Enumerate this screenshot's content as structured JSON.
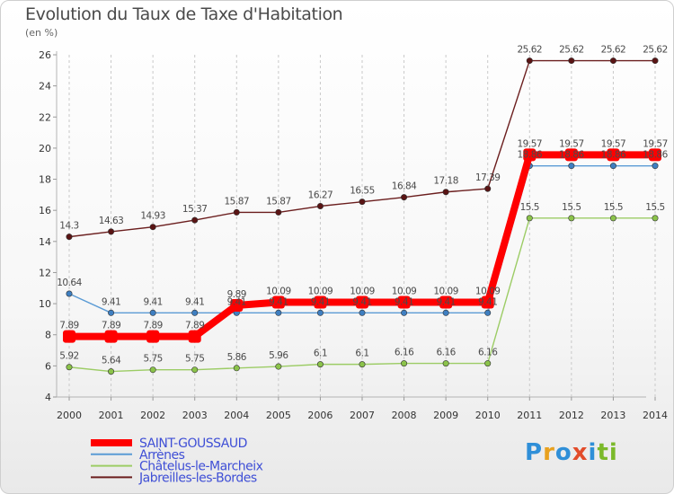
{
  "header": {
    "title": "Evolution du Taux de Taxe d'Habitation",
    "subtitle": "(en %)"
  },
  "logo": {
    "parts": [
      "P",
      "r",
      "o",
      "x",
      "i",
      "ti"
    ]
  },
  "chart_data": {
    "type": "line",
    "title": "Evolution du Taux de Taxe d'Habitation",
    "ylabel": "(en %)",
    "xlabel": "",
    "x": [
      "2000",
      "2001",
      "2002",
      "2003",
      "2004",
      "2005",
      "2006",
      "2007",
      "2008",
      "2009",
      "2010",
      "2011",
      "2012",
      "2013",
      "2014"
    ],
    "ylim": [
      4,
      26
    ],
    "yticks": [
      4,
      6,
      8,
      10,
      12,
      14,
      16,
      18,
      20,
      22,
      24,
      26
    ],
    "grid": "vertical dashed",
    "legend_position": "bottom-left",
    "series": [
      {
        "name": "Jabreilles-les-Bordes",
        "color": "#6b1e1e",
        "marker_color": "#5a1414",
        "values": [
          14.3,
          14.63,
          14.93,
          15.37,
          15.87,
          15.87,
          16.27,
          16.55,
          16.84,
          17.18,
          17.39,
          25.62,
          25.62,
          25.62,
          25.62
        ],
        "labels": [
          "14.3",
          "14.63",
          "14.93",
          "15.37",
          "15.87",
          "15.87",
          "16.27",
          "16.55",
          "16.84",
          "17.18",
          "17.39",
          "25.62",
          "25.62",
          "25.62",
          "25.62"
        ]
      },
      {
        "name": "Châtelus-le-Marcheix",
        "color": "#9ccc65",
        "marker_color": "#8bc34a",
        "values": [
          5.92,
          5.64,
          5.75,
          5.75,
          5.86,
          5.96,
          6.1,
          6.1,
          6.16,
          6.16,
          6.16,
          15.5,
          15.5,
          15.5,
          15.5
        ],
        "labels": [
          "5.92",
          "5.64",
          "5.75",
          "5.75",
          "5.86",
          "5.96",
          "6.1",
          "6.1",
          "6.16",
          "6.16",
          "6.16",
          "15.5",
          "15.5",
          "15.5",
          "15.5"
        ]
      },
      {
        "name": "Arrènes",
        "color": "#5b9bd5",
        "marker_color": "#3f7fc1",
        "values": [
          10.64,
          9.41,
          9.41,
          9.41,
          9.41,
          9.41,
          9.41,
          9.41,
          9.41,
          9.41,
          9.41,
          18.86,
          18.86,
          18.86,
          18.86
        ],
        "labels": [
          "10.64",
          "9.41",
          "9.41",
          "9.41",
          "9.41",
          "9.41",
          "9.41",
          "9.41",
          "9.41",
          "9.41",
          "9.41",
          "18.86",
          "18.86",
          "18.86",
          "18.86"
        ]
      },
      {
        "name": "SAINT-GOUSSAUD",
        "color": "#ff0000",
        "marker_color": "#ff0000",
        "values": [
          7.89,
          7.89,
          7.89,
          7.89,
          9.89,
          10.09,
          10.09,
          10.09,
          10.09,
          10.09,
          10.09,
          19.57,
          19.57,
          19.57,
          19.57
        ],
        "labels": [
          "7.89",
          "7.89",
          "7.89",
          "7.89",
          "9.89",
          "10.09",
          "10.09",
          "10.09",
          "10.09",
          "10.09",
          "10.09",
          "19.57",
          "19.57",
          "19.57",
          "19.57"
        ]
      }
    ],
    "legend": [
      {
        "name": "SAINT-GOUSSAUD",
        "color": "#ff0000"
      },
      {
        "name": "Arrènes",
        "color": "#5b9bd5"
      },
      {
        "name": "Châtelus-le-Marcheix",
        "color": "#9ccc65"
      },
      {
        "name": "Jabreilles-les-Bordes",
        "color": "#6b1e1e"
      }
    ]
  }
}
